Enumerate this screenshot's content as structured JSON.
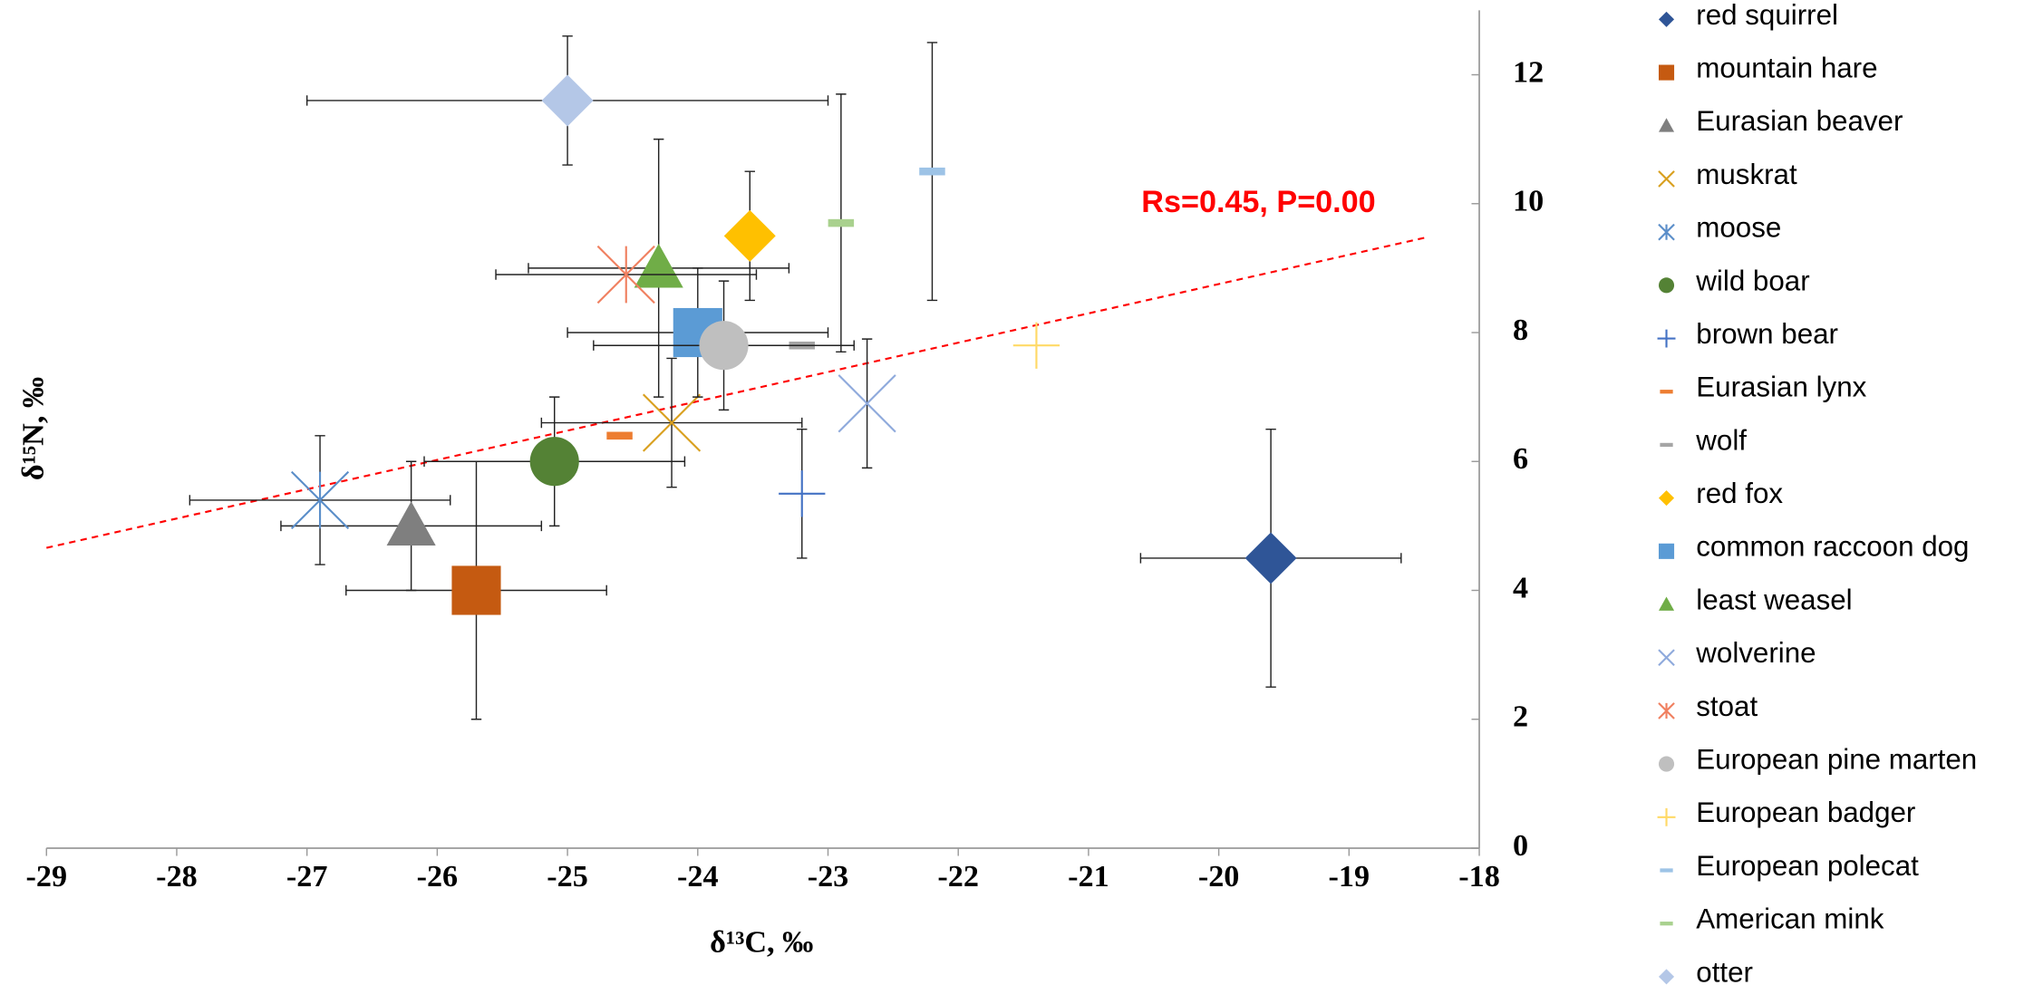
{
  "chart_data": {
    "type": "scatter",
    "xlabel": "δ¹³C, ‰",
    "ylabel": "δ¹⁵N, ‰",
    "xlim": [
      -29,
      -18
    ],
    "xticks": [
      -29,
      -28,
      -27,
      -26,
      -25,
      -24,
      -23,
      -22,
      -21,
      -20,
      -19,
      -18
    ],
    "ylim": [
      0,
      13
    ],
    "yticks": [
      0,
      2,
      4,
      6,
      8,
      10,
      12
    ],
    "annotation": "Rs=0.45, P=0.00",
    "trend": {
      "color": "#ff0000",
      "x": [
        -29,
        -18.4
      ],
      "y": [
        4.66,
        9.48
      ]
    },
    "series": [
      {
        "name": "red squirrel",
        "color": "#2f5597",
        "marker": "diamond",
        "x": [
          -19.6
        ],
        "y": [
          4.5
        ],
        "xerr": [
          1.0
        ],
        "yerr": [
          2.0
        ]
      },
      {
        "name": "mountain hare",
        "color": "#c55a11",
        "marker": "square",
        "x": [
          -25.7
        ],
        "y": [
          4.0
        ],
        "xerr": [
          1.0
        ],
        "yerr": [
          2.0
        ]
      },
      {
        "name": "Eurasian beaver",
        "color": "#7f7f7f",
        "marker": "triangle",
        "x": [
          -26.2
        ],
        "y": [
          5.0
        ],
        "xerr": [
          1.0
        ],
        "yerr": [
          1.0
        ]
      },
      {
        "name": "muskrat",
        "color": "#d9a01f",
        "marker": "x",
        "x": [
          -24.2
        ],
        "y": [
          6.6
        ],
        "xerr": [
          1.0
        ],
        "yerr": [
          1.0
        ]
      },
      {
        "name": "moose",
        "color": "#5b8ec9",
        "marker": "star",
        "x": [
          -26.9
        ],
        "y": [
          5.4
        ],
        "xerr": [
          1.0
        ],
        "yerr": [
          1.0
        ]
      },
      {
        "name": "wild boar",
        "color": "#548235",
        "marker": "circle",
        "x": [
          -25.1
        ],
        "y": [
          6.0
        ],
        "xerr": [
          1.0
        ],
        "yerr": [
          1.0
        ]
      },
      {
        "name": "brown bear",
        "color": "#4472c4",
        "marker": "plus",
        "x": [
          -23.2
        ],
        "y": [
          5.5
        ],
        "xerr": [
          null
        ],
        "yerr": [
          1.0
        ]
      },
      {
        "name": "Eurasian lynx",
        "color": "#ed7d31",
        "marker": "dash",
        "x": [
          -24.6
        ],
        "y": [
          6.4
        ],
        "xerr": [
          null
        ],
        "yerr": [
          null
        ]
      },
      {
        "name": "wolf",
        "color": "#a5a5a5",
        "marker": "dash",
        "x": [
          -23.2
        ],
        "y": [
          7.8
        ],
        "xerr": [
          null
        ],
        "yerr": [
          null
        ]
      },
      {
        "name": "red fox",
        "color": "#ffc000",
        "marker": "diamond",
        "x": [
          -23.6
        ],
        "y": [
          9.5
        ],
        "xerr": [
          null
        ],
        "yerr": [
          1.0
        ]
      },
      {
        "name": "common raccoon dog",
        "color": "#5b9bd5",
        "marker": "square",
        "x": [
          -24.0
        ],
        "y": [
          8.0
        ],
        "xerr": [
          1.0
        ],
        "yerr": [
          1.0
        ]
      },
      {
        "name": "least weasel",
        "color": "#70ad47",
        "marker": "triangle",
        "x": [
          -24.3
        ],
        "y": [
          9.0
        ],
        "xerr": [
          1.0
        ],
        "yerr": [
          2.0
        ]
      },
      {
        "name": "wolverine",
        "color": "#8faadc",
        "marker": "x",
        "x": [
          -22.7
        ],
        "y": [
          6.9
        ],
        "xerr": [
          null
        ],
        "yerr": [
          1.0
        ]
      },
      {
        "name": "stoat",
        "color": "#f08060",
        "marker": "star",
        "x": [
          -24.55
        ],
        "y": [
          8.9
        ],
        "xerr": [
          1.0
        ],
        "yerr": [
          null
        ]
      },
      {
        "name": "European pine marten",
        "color": "#bfbfbf",
        "marker": "circle",
        "x": [
          -23.8
        ],
        "y": [
          7.8
        ],
        "xerr": [
          1.0
        ],
        "yerr": [
          1.0
        ]
      },
      {
        "name": "European badger",
        "color": "#ffd966",
        "marker": "plus",
        "x": [
          -21.4
        ],
        "y": [
          7.8
        ],
        "xerr": [
          null
        ],
        "yerr": [
          null
        ]
      },
      {
        "name": "European polecat",
        "color": "#9dc3e6",
        "marker": "dash",
        "x": [
          -22.2
        ],
        "y": [
          10.5
        ],
        "xerr": [
          null
        ],
        "yerr": [
          2.0
        ]
      },
      {
        "name": "American mink",
        "color": "#a9d18e",
        "marker": "dash",
        "x": [
          -22.9
        ],
        "y": [
          9.7
        ],
        "xerr": [
          null
        ],
        "yerr": [
          2.0
        ]
      },
      {
        "name": "otter",
        "color": "#b4c7e7",
        "marker": "diamond",
        "x": [
          -25.0
        ],
        "y": [
          11.6
        ],
        "xerr": [
          2.0
        ],
        "yerr": [
          1.0
        ]
      }
    ]
  }
}
